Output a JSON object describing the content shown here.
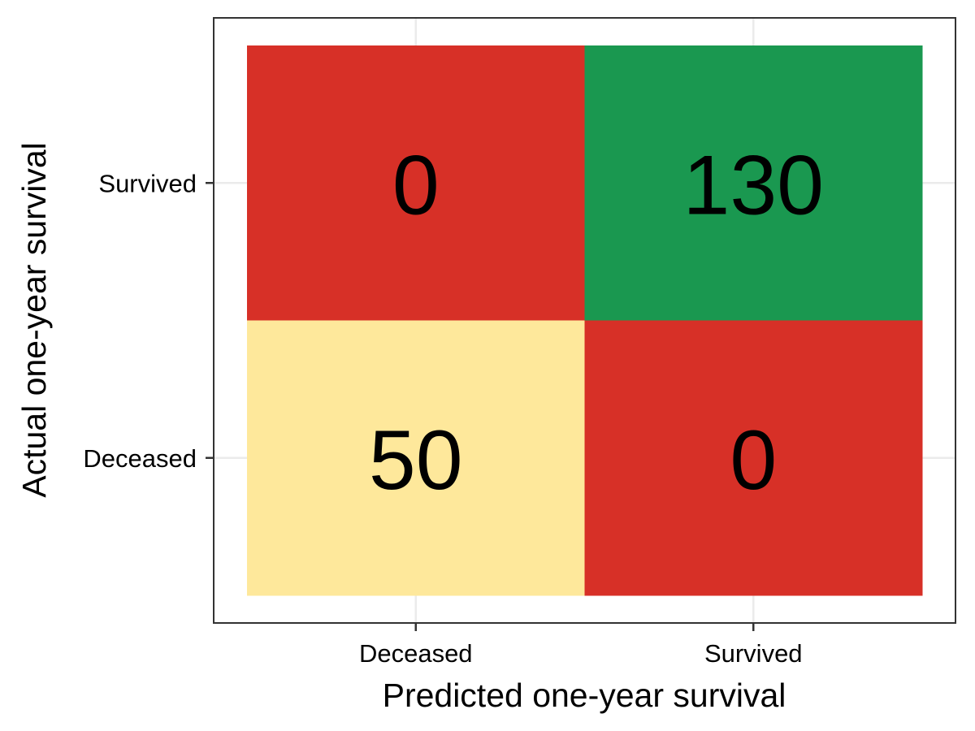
{
  "chart_data": {
    "type": "heatmap",
    "title": "",
    "xlabel": "Predicted one-year survival",
    "ylabel": "Actual one-year survival",
    "x_categories": [
      "Deceased",
      "Survived"
    ],
    "y_categories": [
      "Deceased",
      "Survived"
    ],
    "cells": [
      {
        "x": "Deceased",
        "y": "Survived",
        "value": 0,
        "label": "0",
        "color": "#d73027"
      },
      {
        "x": "Survived",
        "y": "Survived",
        "value": 130,
        "label": "130",
        "color": "#1a9850"
      },
      {
        "x": "Deceased",
        "y": "Deceased",
        "value": 50,
        "label": "50",
        "color": "#fee89b"
      },
      {
        "x": "Survived",
        "y": "Deceased",
        "value": 0,
        "label": "0",
        "color": "#d73027"
      }
    ],
    "grid": true,
    "legend": "none"
  }
}
